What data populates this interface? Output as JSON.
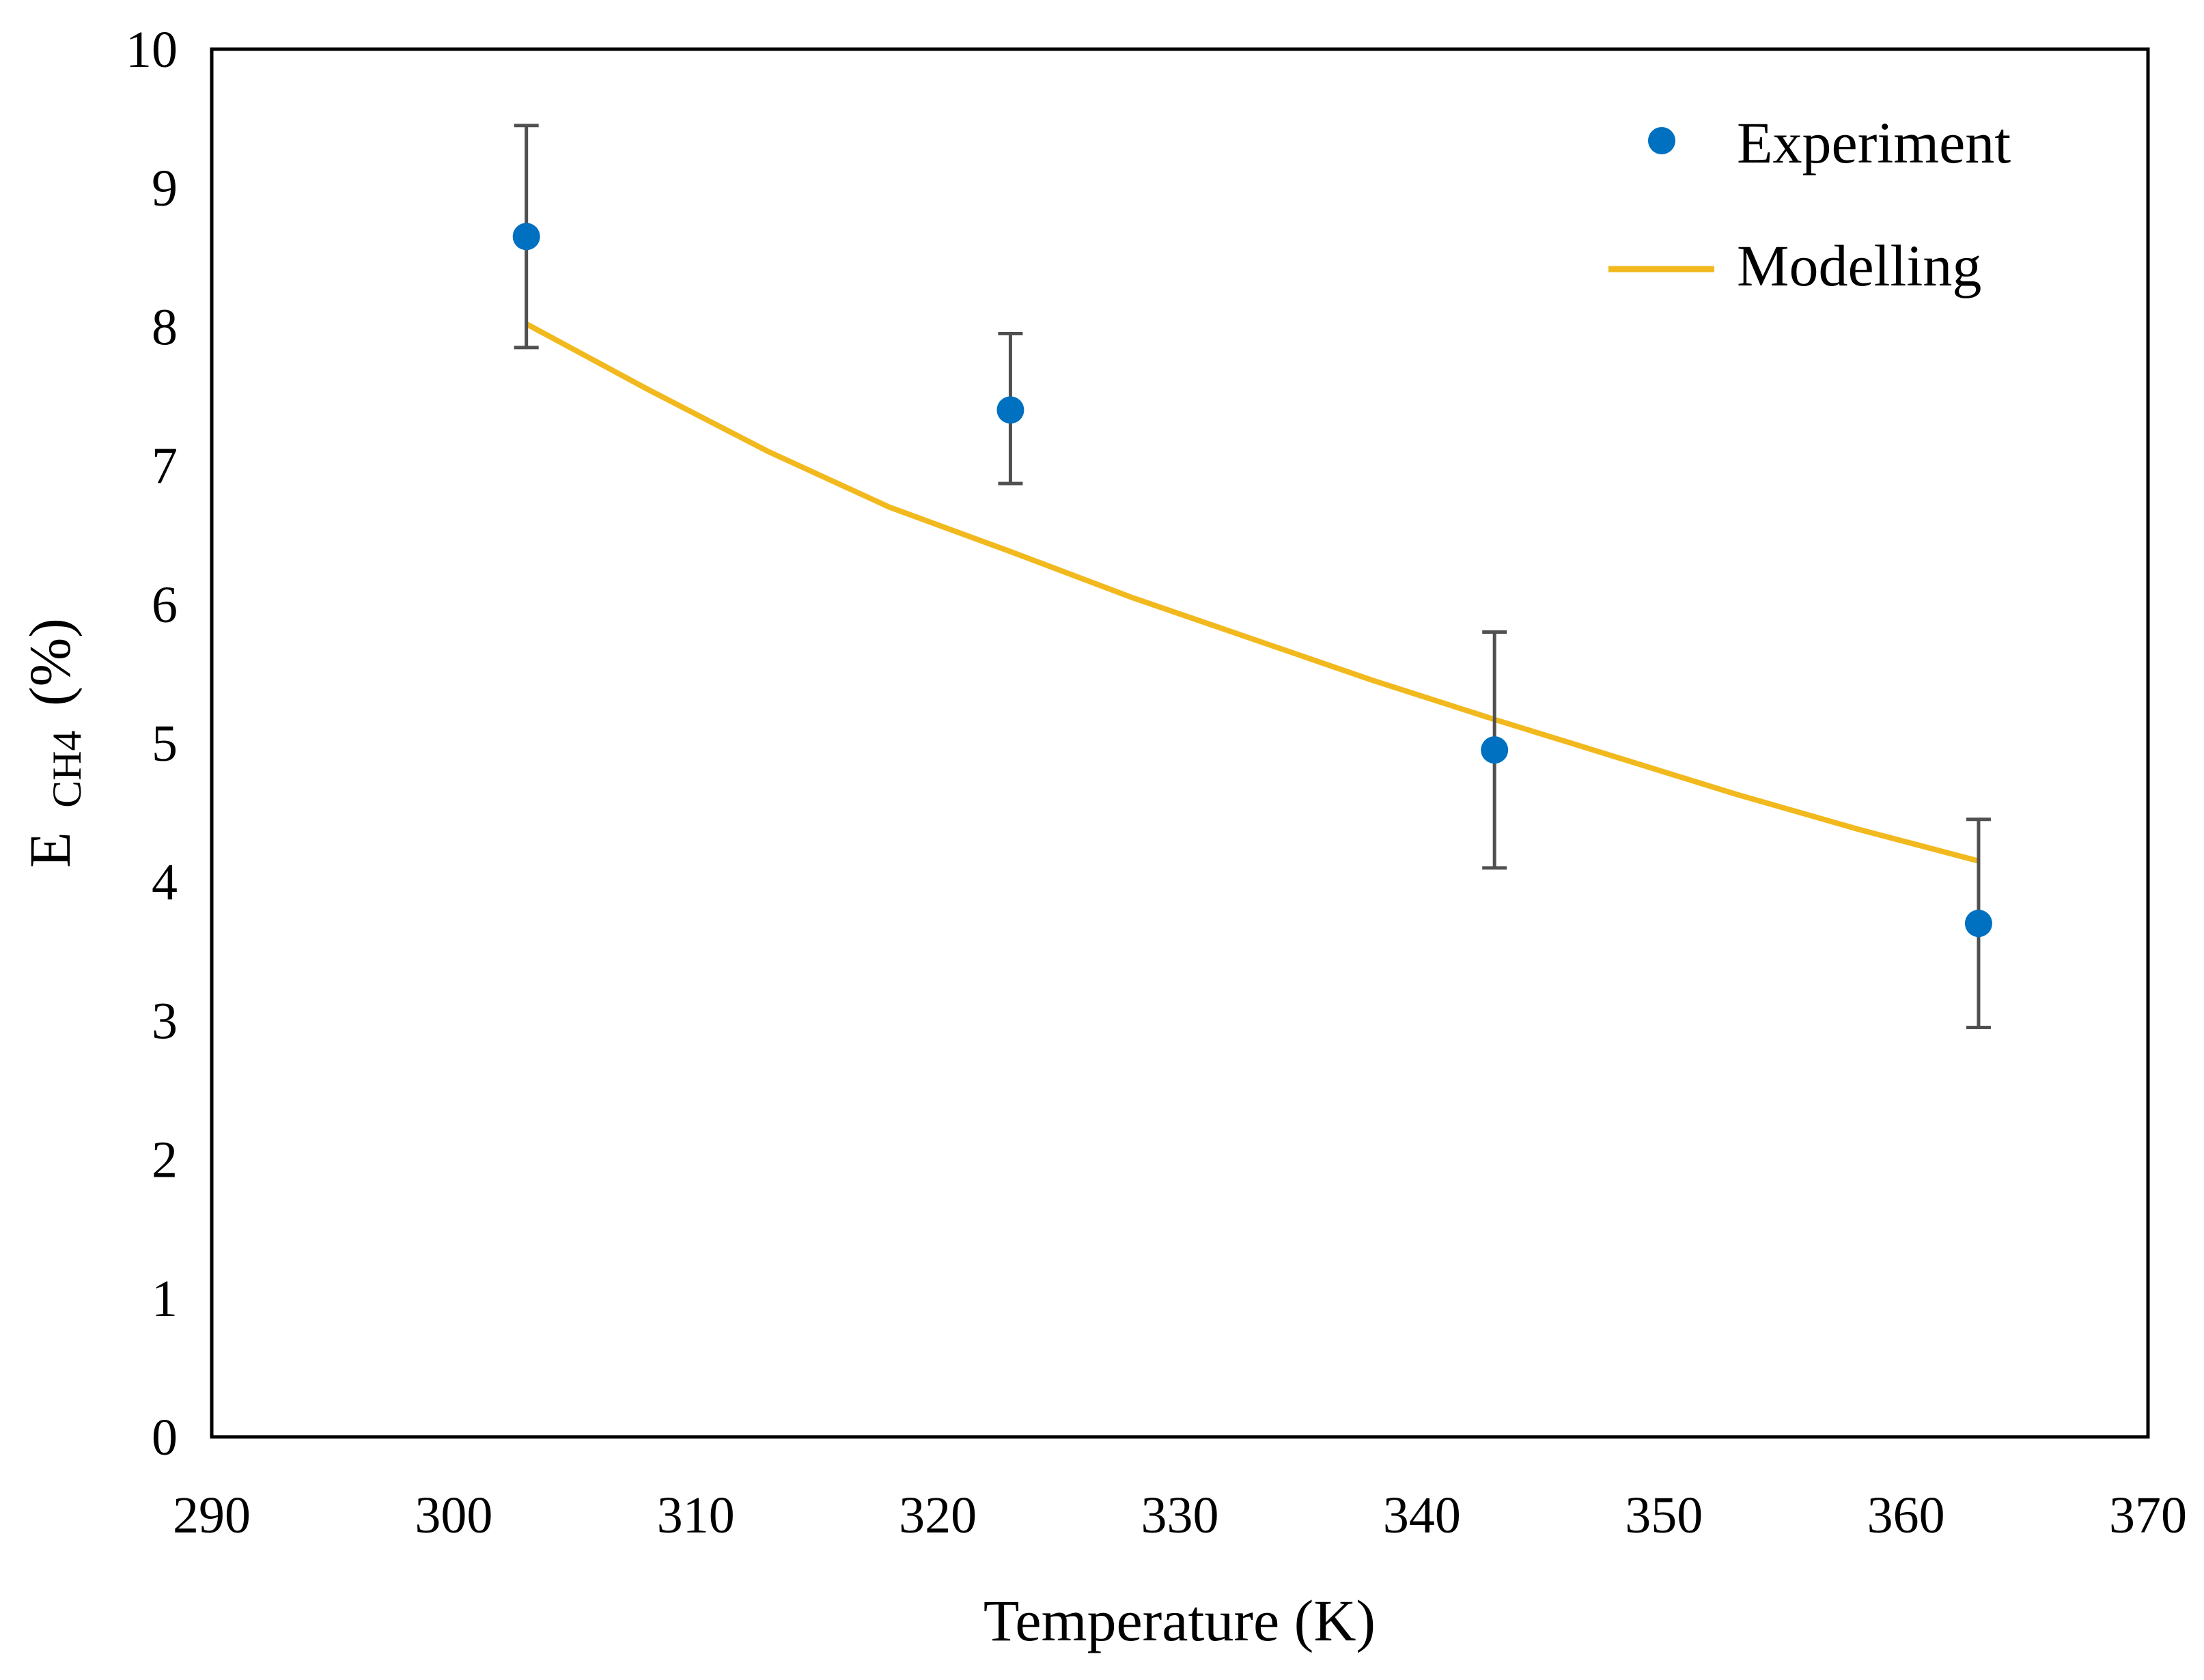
{
  "chart_data": {
    "type": "scatter",
    "xlabel": "Temperature (K)",
    "ylabel": {
      "main": "E",
      "subscript": "CH4",
      "suffix": "(%)"
    },
    "xlim": [
      290,
      370
    ],
    "ylim": [
      0,
      10
    ],
    "xticks": [
      290,
      300,
      310,
      320,
      330,
      340,
      350,
      360,
      370
    ],
    "yticks": [
      0,
      1,
      2,
      3,
      4,
      5,
      6,
      7,
      8,
      9,
      10
    ],
    "grid": false,
    "legend_position": "top-right",
    "series": [
      {
        "name": "Experiment",
        "kind": "scatter",
        "color": "#0070C0",
        "x": [
          303,
          323,
          343,
          363
        ],
        "y": [
          8.65,
          7.4,
          4.95,
          3.7
        ],
        "error_low": [
          7.85,
          6.87,
          4.1,
          2.95
        ],
        "error_high": [
          9.45,
          7.95,
          5.8,
          4.45
        ]
      },
      {
        "name": "Modelling",
        "kind": "line",
        "color": "#F2B91E",
        "x": [
          303,
          308,
          313,
          318,
          323,
          328,
          333,
          338,
          343,
          348,
          353,
          358,
          363
        ],
        "y": [
          8.02,
          7.55,
          7.1,
          6.7,
          6.38,
          6.05,
          5.75,
          5.45,
          5.17,
          4.9,
          4.63,
          4.38,
          4.15
        ]
      }
    ],
    "errorbar_color": "#505050"
  }
}
